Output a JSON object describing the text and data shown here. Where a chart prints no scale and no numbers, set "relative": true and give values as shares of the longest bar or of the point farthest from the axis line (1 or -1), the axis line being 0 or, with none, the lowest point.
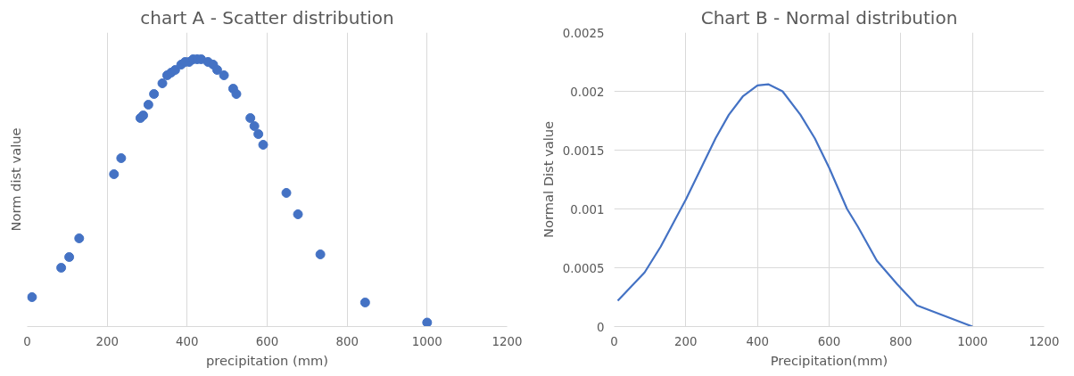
{
  "chart_data": [
    {
      "type": "scatter",
      "title": "chart A - Scatter distribution",
      "xlabel": "precipitation (mm)",
      "ylabel": "Norm dist value",
      "relative": true,
      "marker": "circle",
      "grid": "x",
      "xlim": [
        0,
        1200
      ],
      "xticks": [
        0,
        200,
        400,
        600,
        800,
        1000,
        1200
      ],
      "x": [
        12,
        85,
        105,
        130,
        217,
        235,
        283,
        290,
        303,
        317,
        338,
        350,
        360,
        370,
        385,
        395,
        405,
        415,
        425,
        435,
        452,
        465,
        475,
        492,
        515,
        523,
        558,
        568,
        578,
        590,
        648,
        677,
        733,
        845,
        1000
      ],
      "series": [
        {
          "color": "#4472c4",
          "values": [
            0.11,
            0.22,
            0.26,
            0.33,
            0.57,
            0.63,
            0.78,
            0.79,
            0.83,
            0.87,
            0.91,
            0.94,
            0.95,
            0.96,
            0.98,
            0.99,
            0.99,
            1.0,
            1.0,
            1.0,
            0.99,
            0.98,
            0.96,
            0.94,
            0.89,
            0.87,
            0.78,
            0.75,
            0.72,
            0.68,
            0.5,
            0.42,
            0.27,
            0.09,
            0.015
          ]
        }
      ]
    },
    {
      "type": "line",
      "title": "Chart B - Normal distribution",
      "xlabel": "Precipitation(mm)",
      "ylabel": "Normal Dist value",
      "grid": true,
      "marker": "none",
      "line_style": "solid",
      "xlim": [
        0,
        1200
      ],
      "xticks": [
        0,
        200,
        400,
        600,
        800,
        1000,
        1200
      ],
      "ylim": [
        0,
        0.0025
      ],
      "yticks": [
        0,
        0.0005,
        0.001,
        0.0015,
        0.002,
        0.0025
      ],
      "x": [
        10,
        85,
        130,
        200,
        283,
        320,
        360,
        400,
        430,
        470,
        520,
        560,
        600,
        650,
        680,
        733,
        790,
        845,
        1000
      ],
      "series": [
        {
          "color": "#4472c4",
          "values": [
            0.00022,
            0.00046,
            0.00068,
            0.00108,
            0.0016,
            0.0018,
            0.00196,
            0.00205,
            0.00206,
            0.002,
            0.0018,
            0.0016,
            0.00135,
            0.001,
            0.00085,
            0.00056,
            0.00036,
            0.00018,
            0
          ]
        }
      ]
    }
  ]
}
